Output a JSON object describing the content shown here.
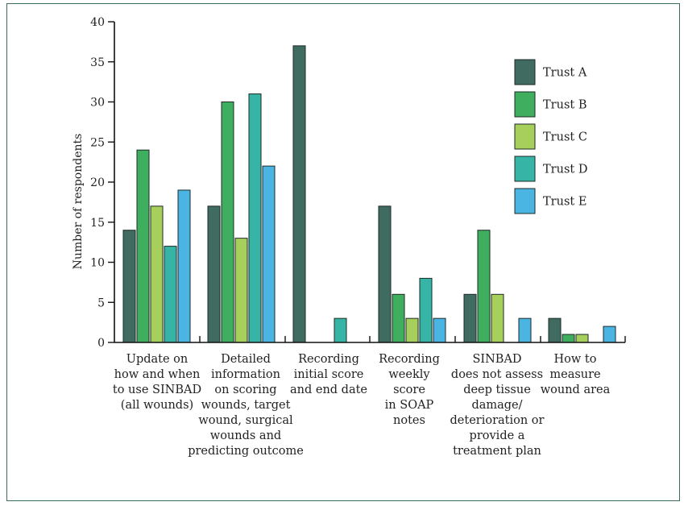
{
  "chart_data": {
    "type": "bar",
    "ylabel": "Number of respondents",
    "xlabel": "",
    "ylim": [
      0,
      40
    ],
    "yticks": [
      0,
      5,
      10,
      15,
      20,
      25,
      30,
      35,
      40
    ],
    "grid": false,
    "legend_position": "top-right",
    "categories": [
      [
        "Update on",
        "how and when",
        "to use SINBAD",
        "(all wounds)"
      ],
      [
        "Detailed",
        "information",
        "on scoring",
        "wounds, target",
        "wound, surgical",
        "wounds and",
        "predicting outcome"
      ],
      [
        "Recording",
        "initial score",
        "and end date"
      ],
      [
        "Recording",
        "weekly",
        "score",
        "in SOAP",
        "notes"
      ],
      [
        "SINBAD",
        "does not assess",
        "deep tissue",
        "damage/",
        "deterioration or",
        "provide a",
        "treatment plan"
      ],
      [
        "How to",
        "measure",
        "wound area"
      ]
    ],
    "series": [
      {
        "name": "Trust A",
        "color": "#3f6b61",
        "values": [
          14,
          17,
          37,
          17,
          6,
          3
        ]
      },
      {
        "name": "Trust B",
        "color": "#3fae5e",
        "values": [
          24,
          30,
          0,
          6,
          14,
          1
        ]
      },
      {
        "name": "Trust C",
        "color": "#a7cf5b",
        "values": [
          17,
          13,
          0,
          3,
          6,
          1
        ]
      },
      {
        "name": "Trust D",
        "color": "#36b5a6",
        "values": [
          12,
          31,
          3,
          8,
          0,
          0
        ]
      },
      {
        "name": "Trust E",
        "color": "#4ab4e3",
        "values": [
          19,
          22,
          0,
          3,
          3,
          2
        ]
      }
    ]
  }
}
